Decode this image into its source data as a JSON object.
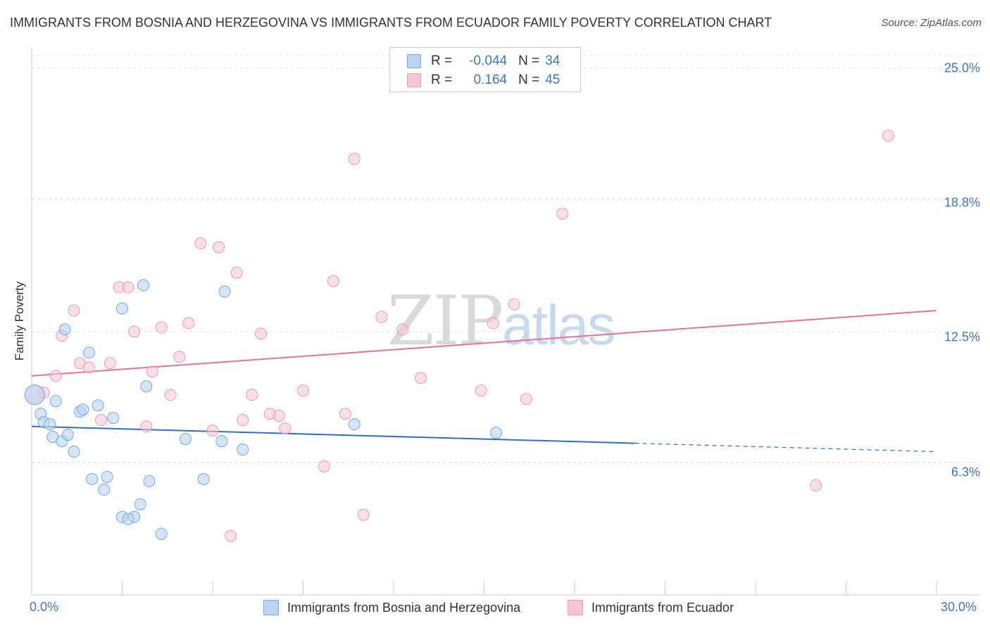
{
  "title": "IMMIGRANTS FROM BOSNIA AND HERZEGOVINA VS IMMIGRANTS FROM ECUADOR FAMILY POVERTY CORRELATION CHART",
  "source": "Source: ZipAtlas.com",
  "watermark": {
    "zip": "ZIP",
    "atlas": "atlas"
  },
  "legend": {
    "series": [
      {
        "r_label": "R =",
        "r_value": "-0.044",
        "n_label": "N =",
        "n_value": "34"
      },
      {
        "r_label": "R =",
        "r_value": "0.164",
        "n_label": "N =",
        "n_value": "45"
      }
    ]
  },
  "colors": {
    "blue_fill": "#b8d3f4",
    "blue_stroke": "#7aa7dc",
    "blue_line": "#2d6ecb",
    "pink_fill": "#f7c5d5",
    "pink_stroke": "#ec9ab5",
    "pink_line": "#e2729a",
    "tick_text": "#3b78c8"
  },
  "chart_data": {
    "type": "scatter",
    "title": "IMMIGRANTS FROM BOSNIA AND HERZEGOVINA VS IMMIGRANTS FROM ECUADOR FAMILY POVERTY CORRELATION CHART",
    "xlabel": "",
    "ylabel": "Family Poverty",
    "xlim": [
      0,
      30
    ],
    "ylim": [
      0,
      25
    ],
    "x_tick_labels": [
      "0.0%",
      "30.0%"
    ],
    "y_ticks": [
      6.3,
      12.5,
      18.8,
      25.0
    ],
    "y_tick_labels": [
      "6.3%",
      "12.5%",
      "18.8%",
      "25.0%"
    ],
    "grid": true,
    "series": [
      {
        "name": "Immigrants from Bosnia and Herzegovina",
        "color": "#7aa7dc",
        "r": -0.044,
        "n": 34,
        "trend": {
          "x0": 0,
          "y0": 8.0,
          "x1": 20,
          "y1": 7.2,
          "dashed_to_x": 30,
          "dashed_to_y": 6.8
        },
        "points": [
          [
            0.1,
            9.5
          ],
          [
            0.3,
            8.6
          ],
          [
            0.4,
            8.2
          ],
          [
            0.6,
            8.1
          ],
          [
            0.7,
            7.5
          ],
          [
            0.8,
            9.2
          ],
          [
            1.0,
            7.3
          ],
          [
            1.2,
            7.6
          ],
          [
            1.4,
            6.8
          ],
          [
            1.1,
            12.6
          ],
          [
            1.9,
            11.5
          ],
          [
            1.6,
            8.7
          ],
          [
            1.7,
            8.8
          ],
          [
            2.2,
            9.0
          ],
          [
            2.0,
            5.5
          ],
          [
            2.4,
            5.0
          ],
          [
            2.5,
            5.6
          ],
          [
            2.7,
            8.4
          ],
          [
            3.0,
            3.7
          ],
          [
            3.4,
            3.7
          ],
          [
            3.2,
            3.6
          ],
          [
            3.0,
            13.6
          ],
          [
            3.6,
            4.3
          ],
          [
            3.7,
            14.7
          ],
          [
            3.8,
            9.9
          ],
          [
            3.9,
            5.4
          ],
          [
            4.3,
            2.9
          ],
          [
            5.1,
            7.4
          ],
          [
            5.7,
            5.5
          ],
          [
            6.3,
            7.3
          ],
          [
            6.4,
            14.4
          ],
          [
            7.0,
            6.9
          ],
          [
            10.7,
            8.1
          ],
          [
            15.4,
            7.7
          ]
        ]
      },
      {
        "name": "Immigrants from Ecuador",
        "color": "#ec9ab5",
        "r": 0.164,
        "n": 45,
        "trend": {
          "x0": 0,
          "y0": 10.4,
          "x1": 30,
          "y1": 13.5
        },
        "points": [
          [
            0.1,
            9.5
          ],
          [
            0.4,
            9.6
          ],
          [
            0.8,
            10.4
          ],
          [
            1.0,
            12.3
          ],
          [
            1.4,
            13.5
          ],
          [
            1.6,
            11.0
          ],
          [
            1.9,
            10.8
          ],
          [
            2.3,
            8.3
          ],
          [
            2.6,
            11.0
          ],
          [
            2.9,
            14.6
          ],
          [
            3.2,
            14.6
          ],
          [
            3.4,
            12.5
          ],
          [
            3.8,
            8.0
          ],
          [
            4.0,
            10.6
          ],
          [
            4.3,
            12.7
          ],
          [
            4.6,
            9.5
          ],
          [
            4.9,
            11.3
          ],
          [
            5.2,
            12.9
          ],
          [
            5.6,
            16.7
          ],
          [
            6.0,
            7.8
          ],
          [
            6.2,
            16.5
          ],
          [
            6.6,
            2.8
          ],
          [
            6.8,
            15.3
          ],
          [
            7.0,
            8.3
          ],
          [
            7.3,
            9.5
          ],
          [
            7.6,
            12.4
          ],
          [
            7.9,
            8.6
          ],
          [
            8.2,
            8.5
          ],
          [
            8.4,
            7.9
          ],
          [
            9.0,
            9.7
          ],
          [
            9.7,
            6.1
          ],
          [
            10.0,
            14.9
          ],
          [
            10.4,
            8.6
          ],
          [
            10.7,
            20.7
          ],
          [
            11.0,
            3.8
          ],
          [
            11.6,
            13.2
          ],
          [
            12.3,
            12.6
          ],
          [
            12.9,
            10.3
          ],
          [
            14.9,
            9.7
          ],
          [
            15.3,
            12.9
          ],
          [
            16.0,
            13.8
          ],
          [
            16.4,
            9.3
          ],
          [
            17.6,
            18.1
          ],
          [
            26.0,
            5.2
          ],
          [
            28.4,
            21.8
          ]
        ]
      }
    ]
  },
  "bottom_legend": [
    {
      "label": "Immigrants from Bosnia and Herzegovina"
    },
    {
      "label": "Immigrants from Ecuador"
    }
  ]
}
